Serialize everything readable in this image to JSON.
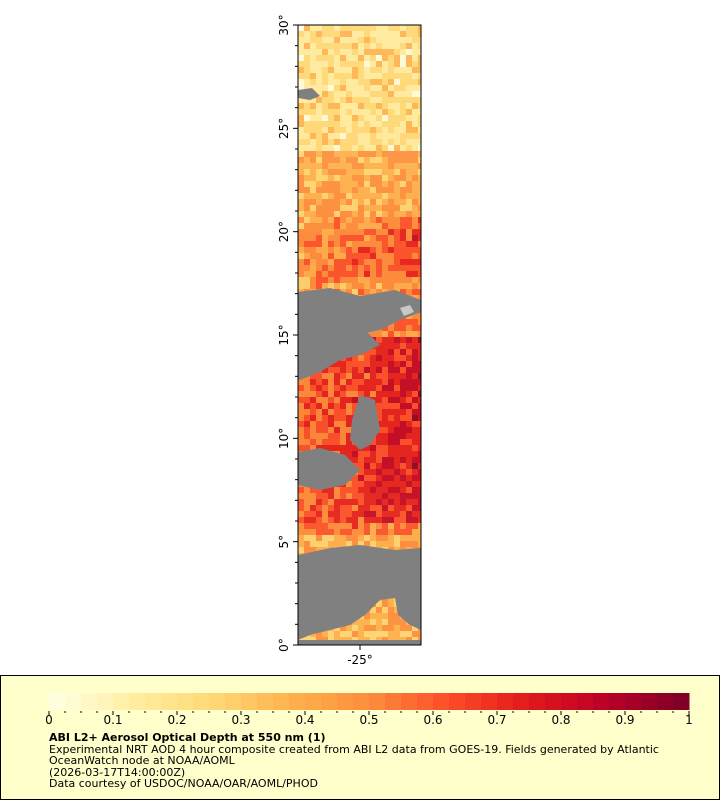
{
  "map": {
    "y_axis_labels": [
      "30°",
      "25°",
      "20°",
      "15°",
      "10°",
      "5°",
      "0°"
    ],
    "x_axis_labels": [
      "-25°"
    ],
    "lat_range": [
      0,
      30
    ],
    "no_data_color": "#808080"
  },
  "legend": {
    "title": "ABI L2+ Aerosol Optical Depth at 550 nm (1)",
    "description": "Experimental NRT AOD 4 hour composite created from ABI L2 data from GOES-19. Fields generated by Atlantic OceanWatch node at NOAA/AOML",
    "timestamp": "(2026-03-17T14:00:00Z)",
    "credit": "Data courtesy of USDOC/NOAA/OAR/AOML/PHOD",
    "ticks": [
      "0",
      "0.1",
      "0.2",
      "0.3",
      "0.4",
      "0.5",
      "0.6",
      "0.7",
      "0.8",
      "0.9",
      "1"
    ],
    "range": [
      0,
      1
    ],
    "colors": [
      "#ffffe0",
      "#ffeda0",
      "#fed976",
      "#feb24c",
      "#fd8d3c",
      "#fc4e2a",
      "#e31a1c",
      "#bd0026",
      "#800026"
    ],
    "background_color": "#ffffcc"
  }
}
